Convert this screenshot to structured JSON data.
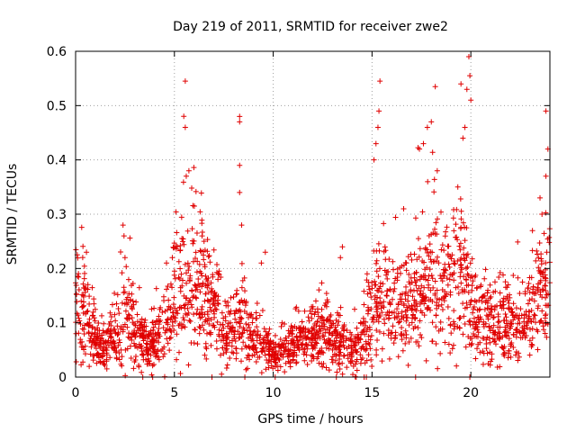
{
  "chart_data": {
    "type": "scatter",
    "title": "Day 219 of 2011, SRMTID for receiver zwe2",
    "xlabel": "GPS time / hours",
    "ylabel": "SRMTID / TECUs",
    "xlim": [
      0,
      24
    ],
    "ylim": [
      0,
      0.6
    ],
    "xticks": [
      0,
      5,
      10,
      15,
      20
    ],
    "yticks": [
      0,
      0.1,
      0.2,
      0.3,
      0.4,
      0.5,
      0.6
    ],
    "xtick_labels": [
      "0",
      "5",
      "10",
      "15",
      "20"
    ],
    "ytick_labels": [
      "0",
      "0.1",
      "0.2",
      "0.3",
      "0.4",
      "0.5",
      "0.6"
    ],
    "grid": true,
    "marker": "+",
    "series_color": "#e00000",
    "series": [
      {
        "name": "zwe2",
        "profile": [
          [
            0,
            0.13
          ],
          [
            0.5,
            0.12
          ],
          [
            1,
            0.07
          ],
          [
            1.5,
            0.06
          ],
          [
            2,
            0.08
          ],
          [
            2.5,
            0.12
          ],
          [
            3,
            0.09
          ],
          [
            3.5,
            0.06
          ],
          [
            4,
            0.07
          ],
          [
            4.5,
            0.09
          ],
          [
            5,
            0.15
          ],
          [
            5.5,
            0.18
          ],
          [
            6,
            0.17
          ],
          [
            6.5,
            0.16
          ],
          [
            7,
            0.13
          ],
          [
            7.5,
            0.08
          ],
          [
            8,
            0.08
          ],
          [
            8.5,
            0.1
          ],
          [
            9,
            0.07
          ],
          [
            9.5,
            0.06
          ],
          [
            10,
            0.05
          ],
          [
            10.5,
            0.05
          ],
          [
            11,
            0.06
          ],
          [
            11.5,
            0.07
          ],
          [
            12,
            0.08
          ],
          [
            12.5,
            0.08
          ],
          [
            13,
            0.07
          ],
          [
            13.5,
            0.06
          ],
          [
            14,
            0.05
          ],
          [
            14.5,
            0.07
          ],
          [
            15,
            0.12
          ],
          [
            15.5,
            0.16
          ],
          [
            16,
            0.12
          ],
          [
            16.5,
            0.11
          ],
          [
            17,
            0.14
          ],
          [
            17.5,
            0.16
          ],
          [
            18,
            0.17
          ],
          [
            18.5,
            0.18
          ],
          [
            19,
            0.17
          ],
          [
            19.5,
            0.19
          ],
          [
            20,
            0.12
          ],
          [
            20.5,
            0.11
          ],
          [
            21,
            0.1
          ],
          [
            21.5,
            0.11
          ],
          [
            22,
            0.1
          ],
          [
            22.5,
            0.09
          ],
          [
            23,
            0.12
          ],
          [
            23.5,
            0.15
          ],
          [
            24,
            0.17
          ]
        ],
        "spikes": [
          [
            5.55,
            0.545
          ],
          [
            5.55,
            0.46
          ],
          [
            5.6,
            0.37
          ],
          [
            8.3,
            0.48
          ],
          [
            8.3,
            0.47
          ],
          [
            8.3,
            0.39
          ],
          [
            8.3,
            0.34
          ],
          [
            8.4,
            0.28
          ],
          [
            15.4,
            0.545
          ],
          [
            15.35,
            0.49
          ],
          [
            15.3,
            0.46
          ],
          [
            15.2,
            0.43
          ],
          [
            15.1,
            0.4
          ],
          [
            17.4,
            0.42
          ],
          [
            17.6,
            0.43
          ],
          [
            17.8,
            0.46
          ],
          [
            18.2,
            0.535
          ],
          [
            18.0,
            0.47
          ],
          [
            18.3,
            0.38
          ],
          [
            19.5,
            0.54
          ],
          [
            19.7,
            0.46
          ],
          [
            19.8,
            0.53
          ],
          [
            19.9,
            0.59
          ],
          [
            19.95,
            0.555
          ],
          [
            20.0,
            0.51
          ],
          [
            19.6,
            0.44
          ],
          [
            23.8,
            0.49
          ],
          [
            23.9,
            0.42
          ],
          [
            23.8,
            0.37
          ],
          [
            23.5,
            0.33
          ],
          [
            23.6,
            0.3
          ],
          [
            2.4,
            0.28
          ],
          [
            2.45,
            0.26
          ],
          [
            2.5,
            0.22
          ],
          [
            13.5,
            0.24
          ],
          [
            13.4,
            0.22
          ],
          [
            16.6,
            0.31
          ],
          [
            6.4,
            0.26
          ],
          [
            6.5,
            0.25
          ],
          [
            0.55,
            0.23
          ],
          [
            9.6,
            0.23
          ],
          [
            9.4,
            0.21
          ],
          [
            4.6,
            0.21
          ],
          [
            3.4,
            0.0
          ],
          [
            3.9,
            0.0
          ],
          [
            6.9,
            0.0
          ],
          [
            10.1,
            0.0
          ],
          [
            14.2,
            0.0
          ],
          [
            14.6,
            0.0
          ],
          [
            19.95,
            0.0
          ]
        ],
        "n_points": 2300,
        "seed": 219
      }
    ]
  }
}
